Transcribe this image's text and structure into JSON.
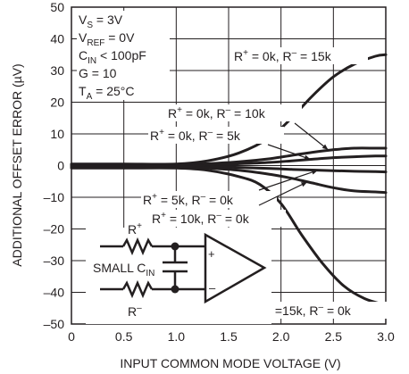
{
  "chart_data": {
    "type": "line",
    "xlabel": "INPUT COMMON MODE VOLTAGE (V)",
    "ylabel": "ADDITIONAL OFFSET ERROR (µV)",
    "xlim": [
      0,
      3.0
    ],
    "ylim": [
      -50,
      50
    ],
    "x_ticks": [
      "0",
      "0.5",
      "1.0",
      "1.5",
      "2.0",
      "2.5",
      "3.0"
    ],
    "y_ticks": [
      "50",
      "40",
      "30",
      "20",
      "10",
      "0",
      "–10",
      "–20",
      "–30",
      "–40",
      "–50"
    ],
    "grid": true,
    "conditions": [
      {
        "main": "V",
        "sub": "S",
        "rest": " = 3V"
      },
      {
        "main": "V",
        "sub": "REF",
        "rest": " = 0V"
      },
      {
        "main": "C",
        "sub": "IN",
        "rest": " < 100pF"
      },
      {
        "main": "G = 10",
        "sub": "",
        "rest": ""
      },
      {
        "main": "T",
        "sub": "A",
        "rest": " = 25°C"
      }
    ],
    "series": [
      {
        "name": "R+ = 0k, R– = 15k",
        "label_sup1": "+",
        "label_mid": " = 0k, R",
        "label_sup2": "–",
        "label_end": " = 15k",
        "x": [
          0,
          0.5,
          1.0,
          1.3,
          1.6,
          1.9,
          2.1,
          2.3,
          2.5,
          2.7,
          2.9,
          3.0
        ],
        "y": [
          0.5,
          0.5,
          0.5,
          1.5,
          4,
          9,
          15,
          22,
          28,
          32,
          34.5,
          35
        ]
      },
      {
        "name": "R+ = 0k, R– = 10k",
        "label_sup1": "+",
        "label_mid": " = 0k, R",
        "label_sup2": "–",
        "label_end": " = 10k",
        "x": [
          0,
          0.5,
          1.0,
          1.3,
          1.6,
          1.9,
          2.1,
          2.3,
          2.5,
          2.7,
          2.9,
          3.0
        ],
        "y": [
          0.3,
          0.3,
          0.3,
          0.6,
          1.2,
          2.2,
          3.2,
          4.2,
          5.0,
          5.5,
          5.5,
          5.5
        ]
      },
      {
        "name": "R+ = 0k, R– = 5k",
        "label_sup1": "+",
        "label_mid": " = 0k, R",
        "label_sup2": "–",
        "label_end": " = 5k",
        "x": [
          0,
          0.5,
          1.0,
          1.3,
          1.6,
          1.9,
          2.1,
          2.3,
          2.5,
          2.7,
          2.9,
          3.0
        ],
        "y": [
          0.1,
          0.1,
          0.1,
          0.3,
          0.6,
          1.0,
          1.5,
          2.0,
          2.5,
          2.8,
          3.0,
          3.0
        ]
      },
      {
        "name": "R+ = 5k, R– = 0k",
        "label_sup1": "+",
        "label_mid": " = 5k, R",
        "label_sup2": "–",
        "label_end": " = 0k",
        "x": [
          0,
          0.5,
          1.0,
          1.3,
          1.6,
          1.9,
          2.1,
          2.3,
          2.5,
          2.7,
          2.9,
          3.0
        ],
        "y": [
          -0.1,
          -0.1,
          -0.1,
          -0.3,
          -0.6,
          -0.9,
          -1.2,
          -1.4,
          -1.6,
          -1.8,
          -1.9,
          -2.0
        ]
      },
      {
        "name": "R+ = 10k, R– = 0k",
        "label_sup1": "+",
        "label_mid": " = 10k, R",
        "label_sup2": "–",
        "label_end": " = 0k",
        "x": [
          0,
          0.5,
          1.0,
          1.3,
          1.6,
          1.9,
          2.1,
          2.3,
          2.5,
          2.7,
          2.9,
          3.0
        ],
        "y": [
          -0.4,
          -0.4,
          -0.4,
          -0.8,
          -1.5,
          -2.8,
          -4.0,
          -5.5,
          -7.0,
          -8.0,
          -8.3,
          -8.5
        ]
      },
      {
        "name": "R+ =15k, R– = 0k",
        "label_sup1": "+",
        "label_mid": " =15k, R",
        "label_sup2": "–",
        "label_end": " = 0k",
        "x": [
          0,
          0.5,
          1.0,
          1.3,
          1.6,
          1.8,
          2.0,
          2.2,
          2.4,
          2.6,
          2.8,
          3.0
        ],
        "y": [
          -0.8,
          -0.8,
          -0.8,
          -1.5,
          -3.5,
          -6,
          -12,
          -22,
          -31,
          -38,
          -42,
          -44
        ]
      }
    ],
    "inset": {
      "label_rplus": "R",
      "label_rplus_sup": "+",
      "label_rminus": "R",
      "label_rminus_sup": "–",
      "label_cap_main": "SMALL C",
      "label_cap_sub": "IN",
      "plus_sign": "+",
      "minus_sign": "–"
    }
  }
}
